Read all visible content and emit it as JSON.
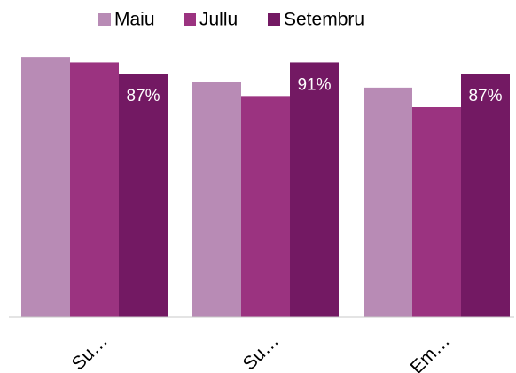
{
  "chart_data": {
    "type": "bar",
    "categories": [
      "Su…",
      "Su…",
      "Em…"
    ],
    "series": [
      {
        "name": "Maiu",
        "color": "#b88bb5",
        "values": [
          93,
          84,
          82
        ]
      },
      {
        "name": "Jullu",
        "color": "#9b3380",
        "values": [
          91,
          79,
          75
        ]
      },
      {
        "name": "Setembru",
        "color": "#731963",
        "values": [
          87,
          91,
          87
        ],
        "value_labels": [
          "87%",
          "91%",
          "87%"
        ]
      }
    ],
    "ylim": [
      0,
      100
    ]
  }
}
